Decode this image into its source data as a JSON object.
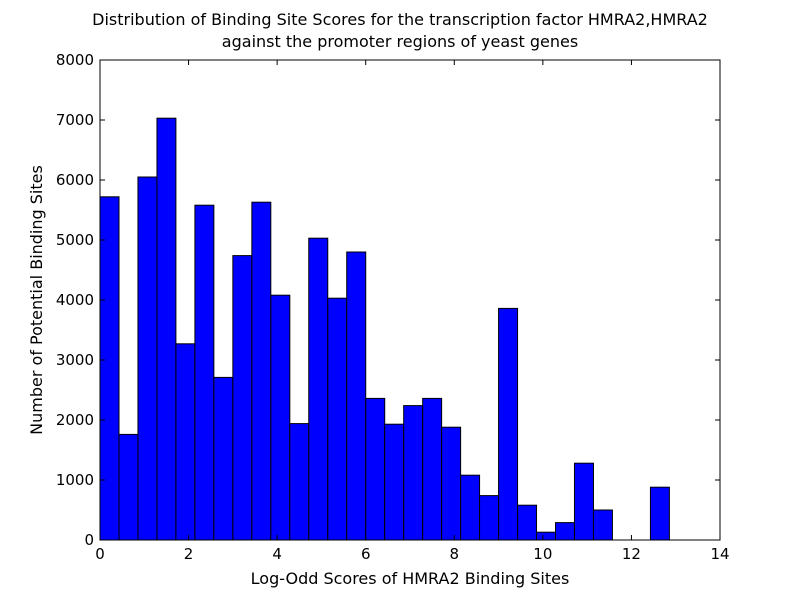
{
  "chart_data": {
    "type": "bar",
    "title": [
      "Distribution of Binding Site Scores for the transcription factor HMRA2,HMRA2",
      "against the promoter regions of yeast genes"
    ],
    "xlabel": "Log-Odd Scores of HMRA2 Binding Sites",
    "ylabel": "Number of Potential Binding Sites",
    "xlim": [
      0,
      14
    ],
    "ylim": [
      0,
      8000
    ],
    "xticks": [
      0,
      2,
      4,
      6,
      8,
      10,
      12,
      14
    ],
    "yticks": [
      0,
      1000,
      2000,
      3000,
      4000,
      5000,
      6000,
      7000,
      8000
    ],
    "bin_edges": [
      0,
      0.429,
      0.857,
      1.286,
      1.714,
      2.143,
      2.571,
      3.0,
      3.429,
      3.857,
      4.286,
      4.714,
      5.143,
      5.571,
      6.0,
      6.429,
      6.857,
      7.286,
      7.714,
      8.143,
      8.571,
      9.0,
      9.429,
      9.857,
      10.286,
      10.714,
      11.143,
      11.571,
      12.0,
      12.429,
      12.857,
      13.286
    ],
    "values": [
      5720,
      1760,
      6050,
      7030,
      3270,
      5580,
      2710,
      4740,
      5630,
      4080,
      1940,
      5030,
      4030,
      4800,
      2360,
      1930,
      2240,
      2360,
      1880,
      1080,
      740,
      3860,
      580,
      130,
      290,
      1280,
      500,
      0,
      0,
      880,
      0
    ],
    "bar_color": "#0000ff",
    "bar_edge_color": "#000000",
    "grid": false
  }
}
